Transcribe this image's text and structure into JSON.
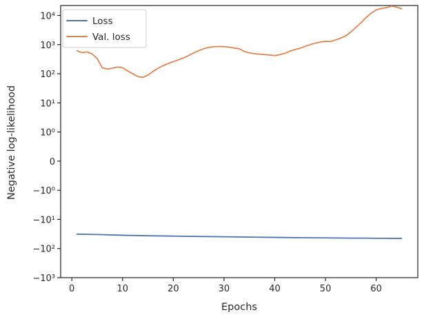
{
  "chart_data": {
    "type": "line",
    "xlabel": "Epochs",
    "ylabel": "Negative log-likelihood",
    "yscale": "symlog",
    "xlim": [
      -2.2,
      68.2
    ],
    "ylim": [
      -1000,
      22000
    ],
    "x_ticks": [
      0,
      10,
      20,
      30,
      40,
      50,
      60
    ],
    "y_ticks": [
      {
        "value": 10000,
        "label": "10⁴"
      },
      {
        "value": 1000,
        "label": "10³"
      },
      {
        "value": 100,
        "label": "10²"
      },
      {
        "value": 10,
        "label": "10¹"
      },
      {
        "value": 1,
        "label": "10⁰"
      },
      {
        "value": 0,
        "label": "0"
      },
      {
        "value": -1,
        "label": "−10⁰"
      },
      {
        "value": -10,
        "label": "−10¹"
      },
      {
        "value": -100,
        "label": "−10²"
      },
      {
        "value": -1000,
        "label": "−10³"
      }
    ],
    "grid": false,
    "legend_position": "top-left",
    "series": [
      {
        "name": "Loss",
        "color": "#4c72b0",
        "x": [
          1,
          5,
          10,
          15,
          20,
          25,
          30,
          35,
          40,
          43,
          45,
          50,
          55,
          58,
          60,
          62,
          63,
          65
        ],
        "y": [
          -32,
          -33,
          -35,
          -36.5,
          -37.5,
          -38.5,
          -39.5,
          -40.5,
          -41.5,
          -42,
          -42.5,
          -43,
          -44,
          -44,
          -44.5,
          -44.5,
          -45,
          -45
        ]
      },
      {
        "name": "Val. loss",
        "color": "#dd8452",
        "x": [
          1,
          2,
          3,
          4,
          5,
          6,
          7,
          8,
          9,
          10,
          11,
          12,
          13,
          14,
          15,
          16,
          17,
          18,
          19,
          20,
          21,
          22,
          23,
          24,
          25,
          26,
          27,
          28,
          29,
          30,
          31,
          32,
          33,
          34,
          35,
          36,
          37,
          38,
          39,
          40,
          41,
          42,
          43,
          44,
          45,
          46,
          47,
          48,
          49,
          50,
          51,
          52,
          53,
          54,
          55,
          56,
          57,
          58,
          59,
          60,
          61,
          62,
          63,
          64,
          65
        ],
        "y": [
          620,
          530,
          560,
          480,
          330,
          160,
          145,
          155,
          170,
          160,
          125,
          100,
          80,
          75,
          90,
          120,
          155,
          190,
          225,
          260,
          300,
          350,
          420,
          520,
          620,
          720,
          800,
          850,
          860,
          850,
          820,
          760,
          720,
          580,
          520,
          490,
          470,
          455,
          440,
          420,
          450,
          500,
          600,
          680,
          750,
          870,
          1000,
          1120,
          1230,
          1300,
          1280,
          1450,
          1680,
          2000,
          2700,
          3900,
          5600,
          8500,
          12000,
          15500,
          17500,
          18500,
          21000,
          19500,
          17000
        ]
      }
    ]
  }
}
